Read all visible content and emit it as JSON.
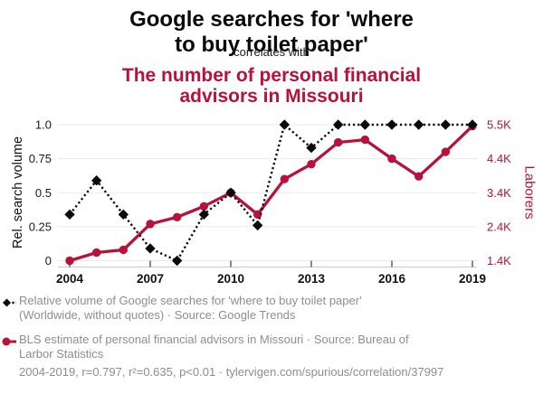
{
  "header": {
    "title1_lines": [
      "Google searches for 'where",
      "to buy toilet paper'"
    ],
    "connector": "correlates with",
    "title2_lines": [
      "The number of personal financial",
      "advisors in Missouri"
    ]
  },
  "legend": {
    "series1_lines": [
      "Relative volume of Google searches for 'where to buy toilet paper'",
      "(Worldwide, without quotes) · Source: Google Trends"
    ],
    "series2_lines": [
      "BLS estimate of personal financial advisors in Missouri · Source: Bureau of",
      "Larbor Statistics"
    ],
    "footnote": "2004-2019, r=0.797, r²=0.635, p<0.01 · tylervigen.com/spurious/correlation/37997"
  },
  "colors": {
    "accent_red": "#b8123a",
    "series_black": "#0b0b0b",
    "gridline": "#eaeaea",
    "axis_line": "#c9c9c9",
    "legend_text": "#8e8e8e"
  },
  "chart_data": {
    "type": "line",
    "x": [
      2004,
      2005,
      2006,
      2007,
      2008,
      2009,
      2010,
      2011,
      2012,
      2013,
      2014,
      2015,
      2016,
      2017,
      2018,
      2019
    ],
    "series": [
      {
        "name": "Relative volume of Google searches for 'where to buy toilet paper'",
        "axis": "left",
        "marker": "diamond",
        "line_style": "dotted",
        "color": "#0b0b0b",
        "values": [
          0.34,
          0.59,
          0.34,
          0.09,
          0.0,
          0.34,
          0.5,
          0.26,
          1.0,
          0.83,
          1.0,
          1.0,
          1.0,
          1.0,
          1.0,
          1.0
        ]
      },
      {
        "name": "BLS estimate of personal financial advisors in Missouri",
        "axis": "right",
        "marker": "circle",
        "line_style": "solid",
        "color": "#b8123a",
        "values_laborers": [
          1400,
          1660,
          1740,
          2500,
          2700,
          3020,
          3430,
          2780,
          3860,
          4300,
          4990,
          5050,
          4480,
          3940,
          4680,
          5460
        ],
        "values_norm": [
          0.0,
          0.06,
          0.08,
          0.27,
          0.32,
          0.4,
          0.5,
          0.34,
          0.6,
          0.71,
          0.87,
          0.89,
          0.75,
          0.62,
          0.8,
          0.99
        ]
      }
    ],
    "left_axis": {
      "label": "Rel. search volume",
      "ticks": [
        "0",
        "0.25",
        "0.5",
        "0.75",
        "1.0"
      ],
      "range": [
        0,
        1
      ]
    },
    "right_axis": {
      "label": "Laborers",
      "ticks": [
        "1.4K",
        "2.4K",
        "3.4K",
        "4.4K",
        "5.5K"
      ]
    },
    "x_axis": {
      "ticks": [
        "2004",
        "2007",
        "2010",
        "2013",
        "2016",
        "2019"
      ],
      "range": [
        2004,
        2019
      ]
    },
    "grid": true,
    "legend_position": "bottom"
  }
}
